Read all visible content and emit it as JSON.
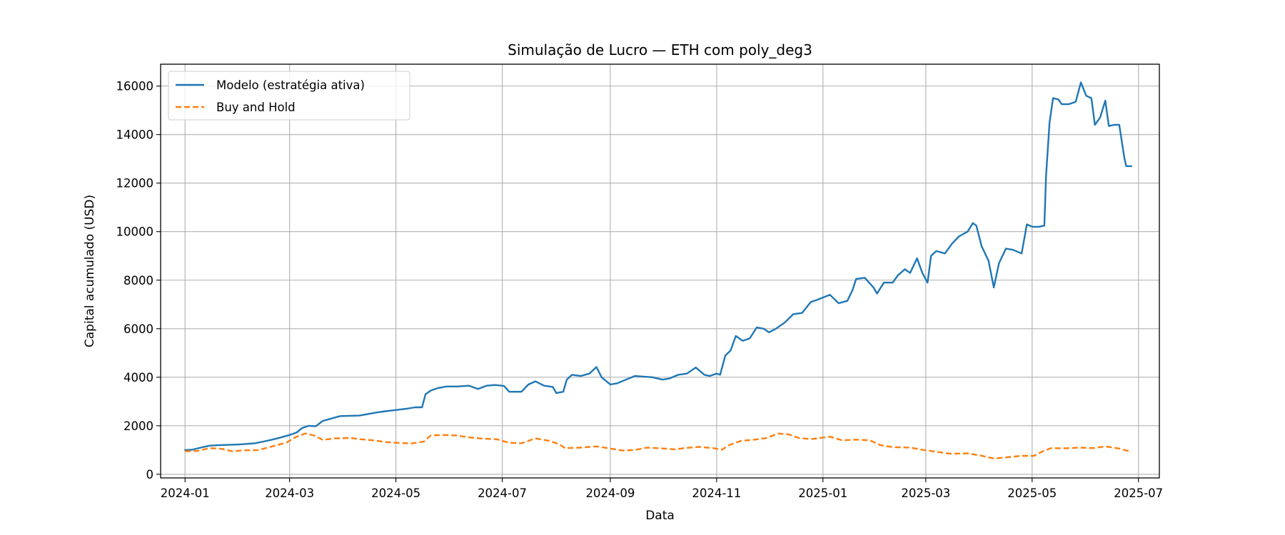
{
  "chart_data": {
    "type": "line",
    "title": "Simulação de Lucro — ETH com poly_deg3",
    "xlabel": "Data",
    "ylabel": "Capital acumulado (USD)",
    "x_axis_type": "date",
    "xlim": [
      "2023-12-18",
      "2025-07-13"
    ],
    "ylim": [
      -150,
      16900
    ],
    "grid": true,
    "legend_position": "top-left",
    "x_ticks": [
      "2024-01",
      "2024-03",
      "2024-05",
      "2024-07",
      "2024-09",
      "2024-11",
      "2025-01",
      "2025-03",
      "2025-05",
      "2025-07"
    ],
    "y_ticks": [
      0,
      2000,
      4000,
      6000,
      8000,
      10000,
      12000,
      14000,
      16000
    ],
    "series": [
      {
        "name": "Modelo (estratégia ativa)",
        "color": "#1f77b4",
        "style": "solid",
        "points": [
          [
            "2024-01-01",
            1000
          ],
          [
            "2024-01-05",
            1010
          ],
          [
            "2024-01-10",
            1100
          ],
          [
            "2024-01-15",
            1180
          ],
          [
            "2024-01-20",
            1200
          ],
          [
            "2024-01-25",
            1210
          ],
          [
            "2024-02-01",
            1230
          ],
          [
            "2024-02-10",
            1280
          ],
          [
            "2024-02-15",
            1350
          ],
          [
            "2024-02-20",
            1430
          ],
          [
            "2024-02-25",
            1520
          ],
          [
            "2024-03-01",
            1620
          ],
          [
            "2024-03-05",
            1720
          ],
          [
            "2024-03-08",
            1900
          ],
          [
            "2024-03-12",
            2000
          ],
          [
            "2024-03-16",
            1980
          ],
          [
            "2024-03-20",
            2200
          ],
          [
            "2024-03-25",
            2300
          ],
          [
            "2024-03-30",
            2400
          ],
          [
            "2024-04-10",
            2420
          ],
          [
            "2024-04-20",
            2550
          ],
          [
            "2024-04-25",
            2600
          ],
          [
            "2024-05-01",
            2650
          ],
          [
            "2024-05-07",
            2700
          ],
          [
            "2024-05-12",
            2760
          ],
          [
            "2024-05-16",
            2760
          ],
          [
            "2024-05-18",
            3300
          ],
          [
            "2024-05-21",
            3450
          ],
          [
            "2024-05-25",
            3550
          ],
          [
            "2024-05-30",
            3620
          ],
          [
            "2024-06-05",
            3620
          ],
          [
            "2024-06-12",
            3650
          ],
          [
            "2024-06-17",
            3520
          ],
          [
            "2024-06-22",
            3650
          ],
          [
            "2024-06-27",
            3680
          ],
          [
            "2024-07-02",
            3640
          ],
          [
            "2024-07-05",
            3400
          ],
          [
            "2024-07-12",
            3400
          ],
          [
            "2024-07-16",
            3700
          ],
          [
            "2024-07-20",
            3830
          ],
          [
            "2024-07-25",
            3650
          ],
          [
            "2024-07-30",
            3600
          ],
          [
            "2024-08-01",
            3350
          ],
          [
            "2024-08-05",
            3400
          ],
          [
            "2024-08-07",
            3900
          ],
          [
            "2024-08-10",
            4100
          ],
          [
            "2024-08-15",
            4050
          ],
          [
            "2024-08-20",
            4150
          ],
          [
            "2024-08-24",
            4420
          ],
          [
            "2024-08-27",
            4000
          ],
          [
            "2024-09-01",
            3700
          ],
          [
            "2024-09-05",
            3750
          ],
          [
            "2024-09-10",
            3900
          ],
          [
            "2024-09-15",
            4050
          ],
          [
            "2024-09-25",
            4000
          ],
          [
            "2024-10-01",
            3900
          ],
          [
            "2024-10-05",
            3950
          ],
          [
            "2024-10-10",
            4100
          ],
          [
            "2024-10-15",
            4150
          ],
          [
            "2024-10-20",
            4400
          ],
          [
            "2024-10-25",
            4100
          ],
          [
            "2024-10-28",
            4050
          ],
          [
            "2024-11-01",
            4150
          ],
          [
            "2024-11-03",
            4100
          ],
          [
            "2024-11-06",
            4900
          ],
          [
            "2024-11-09",
            5100
          ],
          [
            "2024-11-12",
            5700
          ],
          [
            "2024-11-16",
            5500
          ],
          [
            "2024-11-20",
            5600
          ],
          [
            "2024-11-24",
            6050
          ],
          [
            "2024-11-28",
            6000
          ],
          [
            "2024-12-01",
            5850
          ],
          [
            "2024-12-05",
            6000
          ],
          [
            "2024-12-10",
            6250
          ],
          [
            "2024-12-15",
            6600
          ],
          [
            "2024-12-20",
            6650
          ],
          [
            "2024-12-25",
            7100
          ],
          [
            "2024-12-29",
            7200
          ],
          [
            "2025-01-05",
            7400
          ],
          [
            "2025-01-10",
            7050
          ],
          [
            "2025-01-15",
            7150
          ],
          [
            "2025-01-18",
            7600
          ],
          [
            "2025-01-20",
            8050
          ],
          [
            "2025-01-25",
            8100
          ],
          [
            "2025-01-30",
            7700
          ],
          [
            "2025-02-01",
            7450
          ],
          [
            "2025-02-05",
            7900
          ],
          [
            "2025-02-10",
            7900
          ],
          [
            "2025-02-13",
            8200
          ],
          [
            "2025-02-17",
            8450
          ],
          [
            "2025-02-20",
            8300
          ],
          [
            "2025-02-24",
            8900
          ],
          [
            "2025-02-27",
            8300
          ],
          [
            "2025-03-02",
            7900
          ],
          [
            "2025-03-04",
            9000
          ],
          [
            "2025-03-07",
            9200
          ],
          [
            "2025-03-12",
            9100
          ],
          [
            "2025-03-16",
            9500
          ],
          [
            "2025-03-20",
            9800
          ],
          [
            "2025-03-25",
            10000
          ],
          [
            "2025-03-28",
            10350
          ],
          [
            "2025-03-30",
            10250
          ],
          [
            "2025-04-02",
            9400
          ],
          [
            "2025-04-06",
            8800
          ],
          [
            "2025-04-09",
            7700
          ],
          [
            "2025-04-12",
            8700
          ],
          [
            "2025-04-16",
            9300
          ],
          [
            "2025-04-20",
            9250
          ],
          [
            "2025-04-25",
            9100
          ],
          [
            "2025-04-28",
            10300
          ],
          [
            "2025-05-01",
            10200
          ],
          [
            "2025-05-05",
            10200
          ],
          [
            "2025-05-08",
            10250
          ],
          [
            "2025-05-09",
            12300
          ],
          [
            "2025-05-11",
            14500
          ],
          [
            "2025-05-13",
            15500
          ],
          [
            "2025-05-16",
            15450
          ],
          [
            "2025-05-18",
            15250
          ],
          [
            "2025-05-22",
            15250
          ],
          [
            "2025-05-26",
            15350
          ],
          [
            "2025-05-29",
            16150
          ],
          [
            "2025-06-01",
            15600
          ],
          [
            "2025-06-04",
            15500
          ],
          [
            "2025-06-06",
            14400
          ],
          [
            "2025-06-09",
            14700
          ],
          [
            "2025-06-12",
            15400
          ],
          [
            "2025-06-14",
            14350
          ],
          [
            "2025-06-17",
            14400
          ],
          [
            "2025-06-20",
            14400
          ],
          [
            "2025-06-23",
            13000
          ],
          [
            "2025-06-24",
            12700
          ],
          [
            "2025-06-27",
            12700
          ]
        ]
      },
      {
        "name": "Buy and Hold",
        "color": "#ff7f0e",
        "style": "dashed",
        "points": [
          [
            "2024-01-01",
            950
          ],
          [
            "2024-01-08",
            960
          ],
          [
            "2024-01-15",
            1080
          ],
          [
            "2024-01-22",
            1050
          ],
          [
            "2024-01-28",
            950
          ],
          [
            "2024-02-05",
            990
          ],
          [
            "2024-02-12",
            1000
          ],
          [
            "2024-02-20",
            1150
          ],
          [
            "2024-02-28",
            1300
          ],
          [
            "2024-03-05",
            1550
          ],
          [
            "2024-03-10",
            1680
          ],
          [
            "2024-03-15",
            1600
          ],
          [
            "2024-03-20",
            1420
          ],
          [
            "2024-03-27",
            1480
          ],
          [
            "2024-04-05",
            1500
          ],
          [
            "2024-04-10",
            1450
          ],
          [
            "2024-04-18",
            1400
          ],
          [
            "2024-04-25",
            1330
          ],
          [
            "2024-05-01",
            1300
          ],
          [
            "2024-05-10",
            1270
          ],
          [
            "2024-05-17",
            1350
          ],
          [
            "2024-05-21",
            1600
          ],
          [
            "2024-05-28",
            1620
          ],
          [
            "2024-06-05",
            1600
          ],
          [
            "2024-06-12",
            1520
          ],
          [
            "2024-06-20",
            1470
          ],
          [
            "2024-06-28",
            1440
          ],
          [
            "2024-07-05",
            1300
          ],
          [
            "2024-07-12",
            1280
          ],
          [
            "2024-07-20",
            1480
          ],
          [
            "2024-07-28",
            1380
          ],
          [
            "2024-08-03",
            1230
          ],
          [
            "2024-08-06",
            1080
          ],
          [
            "2024-08-15",
            1100
          ],
          [
            "2024-08-24",
            1150
          ],
          [
            "2024-09-01",
            1060
          ],
          [
            "2024-09-08",
            980
          ],
          [
            "2024-09-15",
            1000
          ],
          [
            "2024-09-22",
            1100
          ],
          [
            "2024-09-30",
            1070
          ],
          [
            "2024-10-08",
            1030
          ],
          [
            "2024-10-15",
            1090
          ],
          [
            "2024-10-22",
            1130
          ],
          [
            "2024-10-30",
            1080
          ],
          [
            "2024-11-04",
            1010
          ],
          [
            "2024-11-08",
            1200
          ],
          [
            "2024-11-15",
            1380
          ],
          [
            "2024-11-22",
            1420
          ],
          [
            "2024-11-30",
            1500
          ],
          [
            "2024-12-06",
            1680
          ],
          [
            "2024-12-12",
            1650
          ],
          [
            "2024-12-18",
            1500
          ],
          [
            "2024-12-25",
            1450
          ],
          [
            "2025-01-05",
            1550
          ],
          [
            "2025-01-12",
            1400
          ],
          [
            "2025-01-20",
            1430
          ],
          [
            "2025-01-28",
            1400
          ],
          [
            "2025-02-03",
            1200
          ],
          [
            "2025-02-10",
            1120
          ],
          [
            "2025-02-20",
            1100
          ],
          [
            "2025-02-28",
            1000
          ],
          [
            "2025-03-05",
            950
          ],
          [
            "2025-03-15",
            850
          ],
          [
            "2025-03-25",
            860
          ],
          [
            "2025-04-01",
            780
          ],
          [
            "2025-04-09",
            650
          ],
          [
            "2025-04-15",
            690
          ],
          [
            "2025-04-25",
            760
          ],
          [
            "2025-05-02",
            760
          ],
          [
            "2025-05-08",
            980
          ],
          [
            "2025-05-12",
            1080
          ],
          [
            "2025-05-20",
            1070
          ],
          [
            "2025-05-28",
            1100
          ],
          [
            "2025-06-05",
            1080
          ],
          [
            "2025-06-12",
            1150
          ],
          [
            "2025-06-20",
            1060
          ],
          [
            "2025-06-27",
            920
          ]
        ]
      }
    ]
  }
}
